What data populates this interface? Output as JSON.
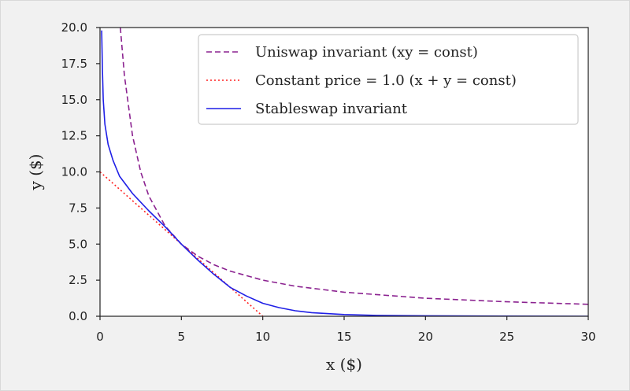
{
  "chart_data": {
    "type": "line",
    "xlabel": "x ($)",
    "ylabel": "y ($)",
    "xlim": [
      0,
      30
    ],
    "ylim": [
      0,
      20
    ],
    "xticks": [
      0,
      5,
      10,
      15,
      20,
      25,
      30
    ],
    "xtick_labels": [
      "0",
      "5",
      "10",
      "15",
      "20",
      "25",
      "30"
    ],
    "yticks": [
      0,
      2.5,
      5,
      7.5,
      10,
      12.5,
      15,
      17.5,
      20
    ],
    "ytick_labels": [
      "0.0",
      "2.5",
      "5.0",
      "7.5",
      "10.0",
      "12.5",
      "15.0",
      "17.5",
      "20.0"
    ],
    "grid": false,
    "legend_position": "top-right",
    "series": [
      {
        "name": "Uniswap invariant (xy = const)",
        "color": "#8b2290",
        "style": "dashed",
        "x": [
          1.25,
          1.5,
          2,
          2.5,
          3,
          4,
          5,
          6,
          7,
          8,
          10,
          12,
          15,
          20,
          25,
          30
        ],
        "y": [
          20,
          16.67,
          12.5,
          10,
          8.33,
          6.25,
          5,
          4.17,
          3.57,
          3.13,
          2.5,
          2.08,
          1.67,
          1.25,
          1.0,
          0.83
        ]
      },
      {
        "name": "Constant price = 1.0 (x + y = const)",
        "color": "#ff2020",
        "style": "dotted",
        "x": [
          0,
          10
        ],
        "y": [
          10,
          0
        ]
      },
      {
        "name": "Stableswap invariant",
        "color": "#1f1fe6",
        "style": "solid",
        "x": [
          0.1,
          0.15,
          0.2,
          0.3,
          0.5,
          0.8,
          1.2,
          2,
          3,
          4,
          5,
          6,
          7,
          8,
          9,
          10,
          11,
          12,
          13,
          15,
          17,
          20,
          25,
          30
        ],
        "y": [
          19.8,
          17.0,
          15.0,
          13.3,
          11.9,
          10.8,
          9.7,
          8.5,
          7.3,
          6.2,
          5.0,
          3.9,
          2.9,
          2.0,
          1.4,
          0.9,
          0.6,
          0.38,
          0.25,
          0.12,
          0.06,
          0.03,
          0.01,
          0.0
        ]
      }
    ]
  }
}
